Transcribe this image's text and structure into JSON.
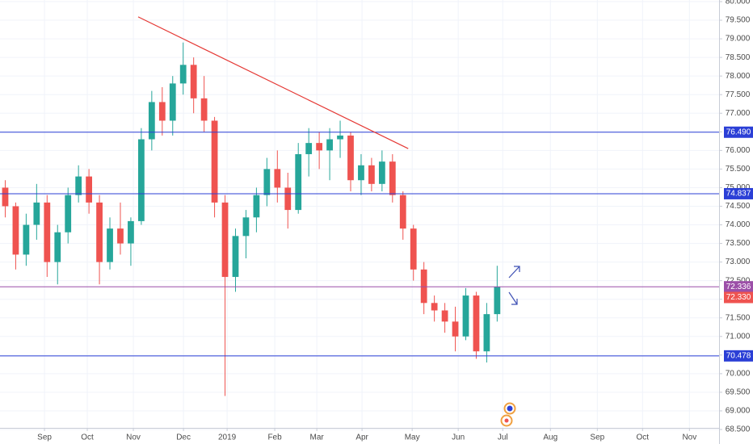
{
  "chart_data": {
    "type": "candlestick",
    "x": [
      0,
      1,
      2,
      3,
      4,
      5,
      6,
      7,
      8,
      9,
      10,
      11,
      12,
      13,
      14,
      15,
      16,
      17,
      18,
      19,
      20,
      21,
      22,
      23,
      24,
      25,
      26,
      27,
      28,
      29,
      30,
      31,
      32,
      33,
      34,
      35,
      36,
      37,
      38,
      39,
      40,
      41,
      42,
      43,
      44,
      45,
      46,
      47
    ],
    "series": [
      {
        "up_color": "#26a69a",
        "down_color": "#ef5350",
        "open": [
          75.0,
          74.5,
          73.2,
          74.0,
          74.6,
          73.0,
          73.8,
          74.8,
          75.3,
          74.6,
          73.0,
          73.9,
          73.5,
          74.1,
          76.3,
          77.3,
          76.8,
          77.8,
          78.3,
          77.4,
          76.8,
          74.6,
          72.6,
          73.7,
          74.2,
          74.8,
          75.5,
          75.0,
          74.4,
          75.9,
          76.2,
          76.0,
          76.3,
          76.4,
          75.2,
          75.6,
          75.1,
          75.7,
          74.8,
          73.9,
          72.8,
          71.9,
          71.7,
          71.4,
          71.0,
          72.1,
          70.6,
          71.6
        ],
        "high": [
          75.2,
          74.6,
          74.3,
          75.1,
          74.8,
          74.0,
          75.0,
          75.6,
          75.5,
          74.8,
          74.2,
          74.6,
          74.2,
          76.6,
          77.6,
          77.7,
          78.0,
          78.9,
          78.5,
          78.0,
          76.9,
          74.8,
          73.9,
          74.4,
          75.0,
          75.8,
          76.0,
          75.4,
          76.2,
          76.6,
          76.5,
          76.6,
          76.8,
          76.5,
          75.9,
          75.8,
          76.0,
          75.9,
          74.9,
          74.0,
          73.0,
          72.1,
          71.9,
          71.8,
          72.3,
          72.2,
          71.9,
          72.9
        ],
        "low": [
          74.2,
          72.8,
          72.9,
          73.6,
          72.6,
          72.4,
          73.5,
          74.6,
          74.3,
          72.4,
          72.8,
          73.2,
          72.9,
          74.0,
          76.0,
          76.4,
          76.4,
          77.5,
          77.0,
          76.5,
          74.2,
          69.4,
          72.2,
          73.1,
          73.8,
          74.5,
          74.6,
          73.9,
          74.3,
          75.3,
          75.5,
          75.2,
          75.8,
          74.9,
          74.8,
          74.9,
          74.9,
          74.6,
          73.6,
          72.5,
          71.6,
          71.4,
          71.1,
          70.6,
          70.9,
          70.4,
          70.3,
          71.4
        ],
        "close": [
          74.5,
          73.2,
          74.0,
          74.6,
          73.0,
          73.8,
          74.8,
          75.3,
          74.6,
          73.0,
          73.9,
          73.5,
          74.1,
          76.3,
          77.3,
          76.8,
          77.8,
          78.3,
          77.4,
          76.8,
          74.6,
          72.6,
          73.7,
          74.2,
          74.8,
          75.5,
          75.0,
          74.4,
          75.9,
          76.2,
          76.0,
          76.3,
          76.4,
          75.2,
          75.6,
          75.1,
          75.7,
          74.8,
          73.9,
          72.8,
          71.9,
          71.7,
          71.4,
          71.0,
          72.1,
          70.6,
          71.6,
          72.33
        ]
      }
    ],
    "xlim": [
      -0.5,
      68.2
    ],
    "xticks": [
      {
        "value": 3.75,
        "label": "Sep"
      },
      {
        "value": 7.84,
        "label": "Oct"
      },
      {
        "value": 12.24,
        "label": "Nov"
      },
      {
        "value": 17.03,
        "label": "Dec"
      },
      {
        "value": 21.2,
        "label": "2019"
      },
      {
        "value": 25.75,
        "label": "Feb"
      },
      {
        "value": 29.77,
        "label": "Mar"
      },
      {
        "value": 34.09,
        "label": "Apr"
      },
      {
        "value": 38.88,
        "label": "May"
      },
      {
        "value": 43.28,
        "label": "Jun"
      },
      {
        "value": 47.53,
        "label": "Jul"
      },
      {
        "value": 52.09,
        "label": "Aug"
      },
      {
        "value": 56.57,
        "label": "Sep"
      },
      {
        "value": 60.89,
        "label": "Oct"
      },
      {
        "value": 65.37,
        "label": "Nov"
      }
    ],
    "ylim": [
      68.5,
      80.0
    ],
    "yticks": [
      {
        "value": 68.5,
        "label": "68.500"
      },
      {
        "value": 69,
        "label": "69.000"
      },
      {
        "value": 69.5,
        "label": "69.500"
      },
      {
        "value": 70,
        "label": "70.000"
      },
      {
        "value": 70.5,
        "label": "70.500"
      },
      {
        "value": 71,
        "label": "71.000"
      },
      {
        "value": 71.5,
        "label": "71.500"
      },
      {
        "value": 72,
        "label": "72.000"
      },
      {
        "value": 72.5,
        "label": "72.500"
      },
      {
        "value": 73,
        "label": "73.000"
      },
      {
        "value": 73.5,
        "label": "73.500"
      },
      {
        "value": 74,
        "label": "74.000"
      },
      {
        "value": 74.5,
        "label": "74.500"
      },
      {
        "value": 75,
        "label": "75.000"
      },
      {
        "value": 75.5,
        "label": "75.500"
      },
      {
        "value": 76,
        "label": "76.000"
      },
      {
        "value": 76.5,
        "label": "76.500"
      },
      {
        "value": 77,
        "label": "77.000"
      },
      {
        "value": 77.5,
        "label": "77.500"
      },
      {
        "value": 78,
        "label": "78.000"
      },
      {
        "value": 78.5,
        "label": "78.500"
      },
      {
        "value": 79,
        "label": "79.000"
      },
      {
        "value": 79.5,
        "label": "79.500"
      },
      {
        "value": 80,
        "label": "80.000"
      }
    ],
    "grid": true,
    "levels": [
      {
        "value": 76.49,
        "label": "76.490",
        "color": "#2b3fd6"
      },
      {
        "value": 74.837,
        "label": "74.837",
        "color": "#2b3fd6"
      },
      {
        "value": 72.336,
        "label": "72.336",
        "color": "#9c4fa8"
      },
      {
        "value": 70.478,
        "label": "70.478",
        "color": "#2b3fd6"
      }
    ],
    "last_price": {
      "value": 72.33,
      "label": "72.330",
      "color": "#ef5350"
    },
    "trendline": {
      "x": [
        12.7,
        38.5
      ],
      "y": [
        79.59,
        76.05
      ],
      "color": "#e53935"
    }
  }
}
